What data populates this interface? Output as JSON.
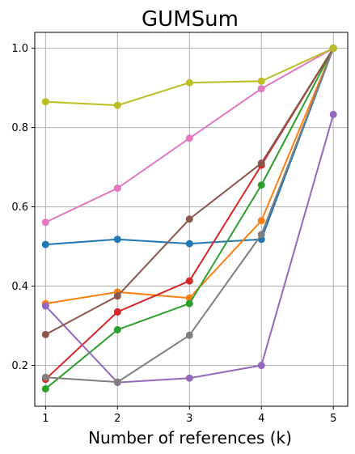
{
  "chart_data": {
    "type": "line",
    "title": "GUMSum",
    "xlabel": "Number of references (k)",
    "ylabel": "",
    "x": [
      1,
      2,
      3,
      4,
      5
    ],
    "xlim": [
      0.85,
      5.2
    ],
    "ylim": [
      0.097,
      1.04
    ],
    "xticks": [
      "1",
      "2",
      "3",
      "4",
      "5"
    ],
    "yticks": [
      "0.2",
      "0.4",
      "0.6",
      "0.8",
      "1.0"
    ],
    "grid": true,
    "series": [
      {
        "color": "#1f77b4",
        "values": [
          0.505,
          0.518,
          0.507,
          0.518,
          1.0
        ]
      },
      {
        "color": "#ff7f0e",
        "values": [
          0.356,
          0.385,
          0.37,
          0.565,
          1.0
        ]
      },
      {
        "color": "#2ca02c",
        "values": [
          0.141,
          0.29,
          0.356,
          0.655,
          1.0
        ]
      },
      {
        "color": "#d62728",
        "values": [
          0.165,
          0.335,
          0.413,
          0.705,
          1.0
        ]
      },
      {
        "color": "#9467bd",
        "values": [
          0.35,
          0.157,
          0.168,
          0.2,
          0.833
        ]
      },
      {
        "color": "#8c564b",
        "values": [
          0.278,
          0.375,
          0.569,
          0.71,
          1.0
        ]
      },
      {
        "color": "#e377c2",
        "values": [
          0.561,
          0.647,
          0.773,
          0.898,
          1.0
        ]
      },
      {
        "color": "#7f7f7f",
        "values": [
          0.17,
          0.158,
          0.276,
          0.53,
          1.0
        ]
      },
      {
        "color": "#bcbd22",
        "values": [
          0.865,
          0.856,
          0.913,
          0.917,
          1.0
        ]
      }
    ]
  }
}
